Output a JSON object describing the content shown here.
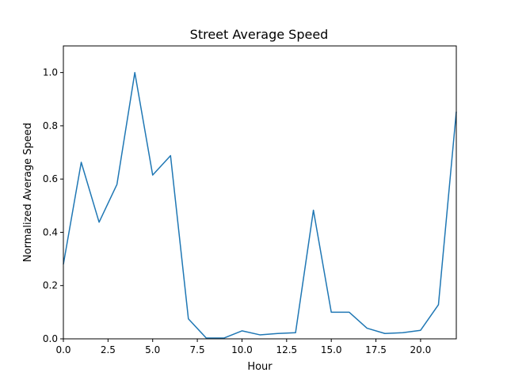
{
  "chart_data": {
    "type": "line",
    "title": "Street Average Speed",
    "xlabel": "Hour",
    "ylabel": "Normalized Average Speed",
    "xlim": [
      0,
      22
    ],
    "ylim": [
      0,
      1.1
    ],
    "grid": false,
    "x_ticks": [
      0,
      2.5,
      5,
      7.5,
      10,
      12.5,
      15,
      17.5,
      20
    ],
    "x_tick_labels": [
      "0.0",
      "2.5",
      "5.0",
      "7.5",
      "10.0",
      "12.5",
      "15.0",
      "17.5",
      "20.0"
    ],
    "y_ticks": [
      0,
      0.2,
      0.4,
      0.6,
      0.8,
      1.0
    ],
    "y_tick_labels": [
      "0.0",
      "0.2",
      "0.4",
      "0.6",
      "0.8",
      "1.0"
    ],
    "series": [
      {
        "color": "#1f77b4",
        "x": [
          0,
          1,
          2,
          3,
          4,
          5,
          6,
          7,
          8,
          9,
          10,
          11,
          12,
          13,
          14,
          15,
          16,
          17,
          18,
          19,
          20,
          21,
          22
        ],
        "values": [
          0.28,
          0.663,
          0.438,
          0.58,
          1.0,
          0.615,
          0.688,
          0.075,
          0.003,
          0.003,
          0.03,
          0.015,
          0.02,
          0.023,
          0.483,
          0.1,
          0.1,
          0.04,
          0.02,
          0.023,
          0.032,
          0.128,
          0.853
        ]
      }
    ]
  }
}
